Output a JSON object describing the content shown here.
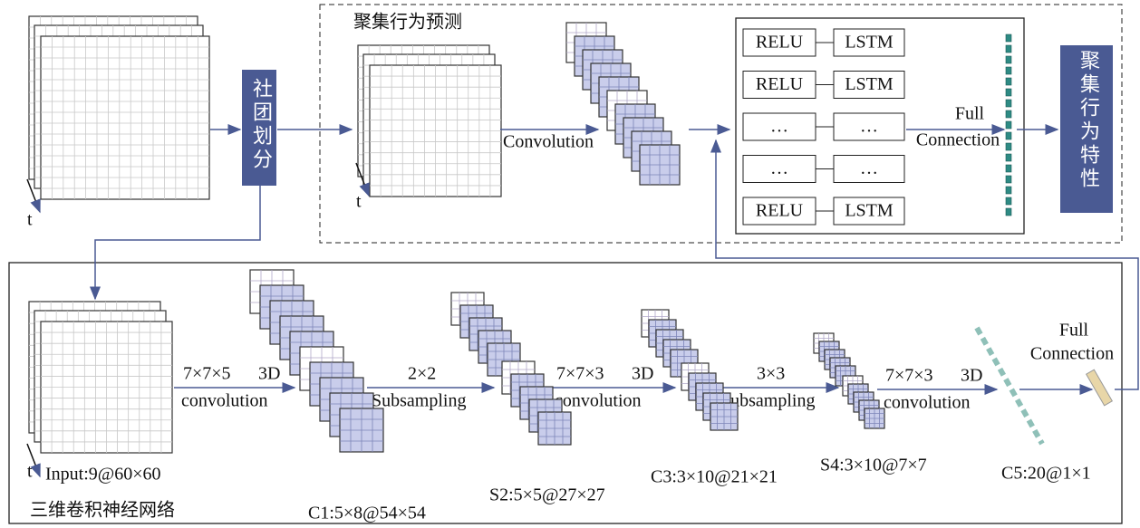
{
  "top": {
    "input_time_label": "t",
    "partition": "社团划分",
    "prediction_title": "聚集行为预测",
    "stack_time_label": "t",
    "convolution": "Convolution",
    "lstm_rows": [
      {
        "left": "RELU",
        "right": "LSTM"
      },
      {
        "left": "RELU",
        "right": "LSTM"
      },
      {
        "left": "…",
        "right": "…"
      },
      {
        "left": "…",
        "right": "…"
      },
      {
        "left": "RELU",
        "right": "LSTM"
      }
    ],
    "full_connection": [
      "Full",
      "Connection"
    ],
    "output": "聚集行为特性"
  },
  "bottom": {
    "time_label": "t",
    "input": "Input:9@60×60",
    "title": "三维卷积神经网络",
    "steps": [
      {
        "kernel": "7×7×5",
        "mode": "3D",
        "operation": "convolution"
      },
      {
        "kernel": "2×2",
        "operation": "Subsampling"
      },
      {
        "kernel": "7×7×3",
        "mode": "3D",
        "operation": "convolution"
      },
      {
        "kernel": "3×3",
        "operation": "Subsampling"
      },
      {
        "kernel": "7×7×3",
        "mode": "3D",
        "operation": "convolution"
      }
    ],
    "layers": [
      "C1:5×8@54×54",
      "S2:5×5@27×27",
      "C3:3×10@21×21",
      "S4:3×10@7×7",
      "C5:20@1×1"
    ],
    "full_connection": [
      "Full",
      "Connection"
    ]
  }
}
